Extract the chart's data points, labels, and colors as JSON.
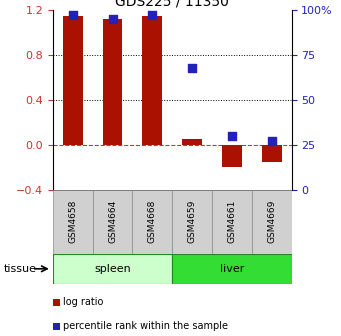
{
  "title": "GDS225 / 11350",
  "samples": [
    "GSM4658",
    "GSM4664",
    "GSM4668",
    "GSM4659",
    "GSM4661",
    "GSM4669"
  ],
  "log_ratio": [
    1.15,
    1.12,
    1.15,
    0.05,
    -0.2,
    -0.15
  ],
  "percentile": [
    97,
    95,
    97,
    68,
    30,
    27
  ],
  "ylim_left": [
    -0.4,
    1.2
  ],
  "ylim_right": [
    0,
    100
  ],
  "yticks_left": [
    -0.4,
    0.0,
    0.4,
    0.8,
    1.2
  ],
  "yticks_right": [
    0,
    25,
    50,
    75,
    100
  ],
  "bar_color": "#aa1100",
  "square_color": "#2222bb",
  "zero_line_color": "#cc3333",
  "dot_line_color": "#000000",
  "spleen_color_light": "#ccffcc",
  "spleen_color_dark": "#44cc44",
  "liver_color": "#33dd33",
  "sample_box_color": "#d0d0d0",
  "legend_log_ratio": "log ratio",
  "legend_percentile": "percentile rank within the sample",
  "tissue_label": "tissue"
}
